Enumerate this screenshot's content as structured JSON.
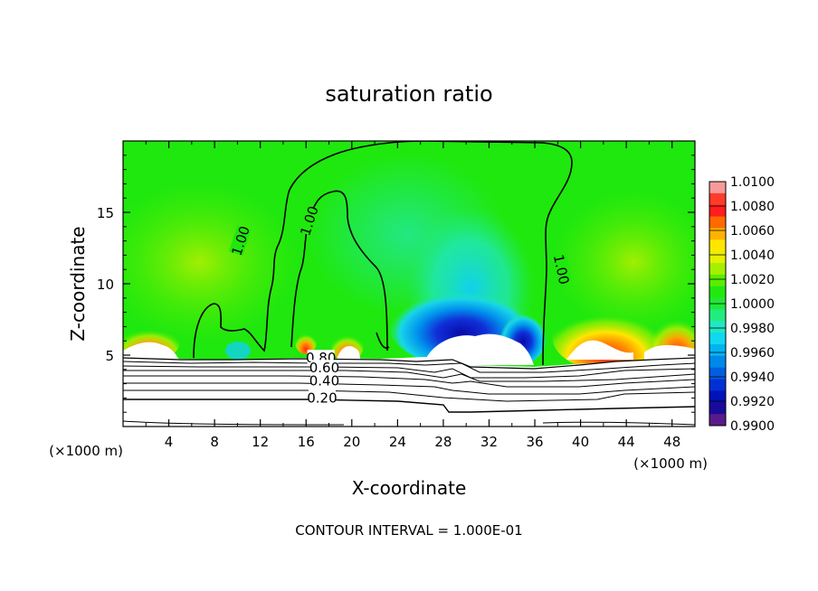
{
  "chart_data": {
    "type": "heatmap",
    "title": "saturation ratio",
    "xlabel": "X-coordinate",
    "ylabel": "Z-coordinate",
    "x_unit": "(×1000 m)",
    "z_unit": "(×1000 m)",
    "footer": "CONTOUR INTERVAL = 1.000E-01",
    "xlim": [
      0,
      50
    ],
    "ylim": [
      0,
      20
    ],
    "x_ticks": [
      4,
      8,
      12,
      16,
      20,
      24,
      28,
      32,
      36,
      40,
      44,
      48
    ],
    "y_ticks": [
      5,
      10,
      15
    ],
    "colorbar": {
      "labels": [
        "1.0100",
        "1.0080",
        "1.0060",
        "1.0040",
        "1.0020",
        "1.0000",
        "0.9980",
        "0.9960",
        "0.9940",
        "0.9920",
        "0.9900"
      ],
      "colors": [
        "#f79a9a",
        "#ff3b2a",
        "#ff1d1d",
        "#ff6a00",
        "#ffb200",
        "#ffe600",
        "#e6f000",
        "#a5f000",
        "#58ee00",
        "#22e810",
        "#1fe83a",
        "#22ec80",
        "#20e8c4",
        "#10d8ee",
        "#00b4f2",
        "#0088ea",
        "#005ee0",
        "#0030d4",
        "#0012b8",
        "#1a0a9a",
        "#5a1a8a"
      ]
    },
    "contour_labels": [
      {
        "text": "1.00",
        "x": 10.3,
        "z": 13.0
      },
      {
        "text": "1.00",
        "x": 16.3,
        "z": 14.4
      },
      {
        "text": "1.00",
        "x": 38.3,
        "z": 11.0
      },
      {
        "text": "0.80",
        "x": 17.3,
        "z": 4.8
      },
      {
        "text": "0.60",
        "x": 17.6,
        "z": 4.1
      },
      {
        "text": "0.40",
        "x": 17.6,
        "z": 3.2
      },
      {
        "text": "0.20",
        "x": 17.4,
        "z": 2.0
      }
    ]
  }
}
